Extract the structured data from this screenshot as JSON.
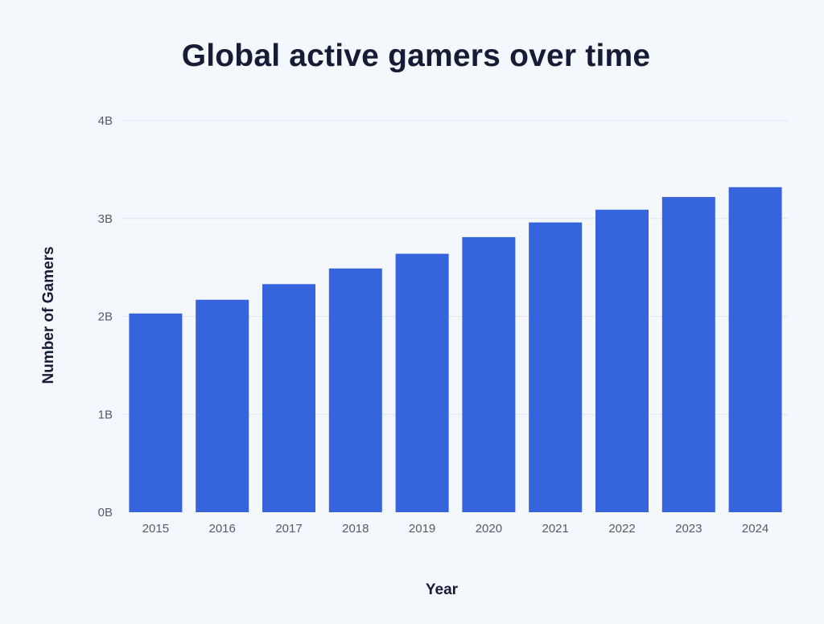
{
  "chart_data": {
    "type": "bar",
    "title": "Global active gamers over time",
    "xlabel": "Year",
    "ylabel": "Number of Gamers",
    "categories": [
      "2015",
      "2016",
      "2017",
      "2018",
      "2019",
      "2020",
      "2021",
      "2022",
      "2023",
      "2024"
    ],
    "values": [
      2.03,
      2.17,
      2.33,
      2.49,
      2.64,
      2.81,
      2.96,
      3.09,
      3.22,
      3.32
    ],
    "unit": "B",
    "ylim": [
      0,
      4
    ],
    "yticks": [
      "0B",
      "1B",
      "2B",
      "3B",
      "4B"
    ],
    "grid": true,
    "legend": "none",
    "colors": {
      "bar": "#3564dd",
      "grid": "#dfe5ee",
      "background": "#f4f8fc",
      "title": "#161c36",
      "tick": "#555a66"
    }
  }
}
